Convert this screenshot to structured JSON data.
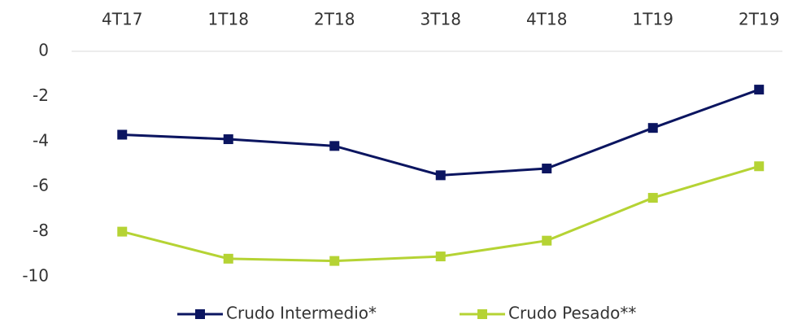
{
  "chart_data": {
    "type": "line",
    "categories": [
      "4T17",
      "1T18",
      "2T18",
      "3T18",
      "4T18",
      "1T19",
      "2T19"
    ],
    "series": [
      {
        "name": "Crudo Intermedio*",
        "color": "#0b1560",
        "values": [
          -3.7,
          -3.9,
          -4.2,
          -5.5,
          -5.2,
          -3.4,
          -1.7
        ]
      },
      {
        "name": "Crudo Pesado**",
        "color": "#b5d334",
        "values": [
          -8.0,
          -9.2,
          -9.3,
          -9.1,
          -8.4,
          -6.5,
          -5.1
        ]
      }
    ],
    "ylim": [
      -10,
      0
    ],
    "yticks": [
      0,
      -2,
      -4,
      -6,
      -8,
      -10
    ]
  }
}
